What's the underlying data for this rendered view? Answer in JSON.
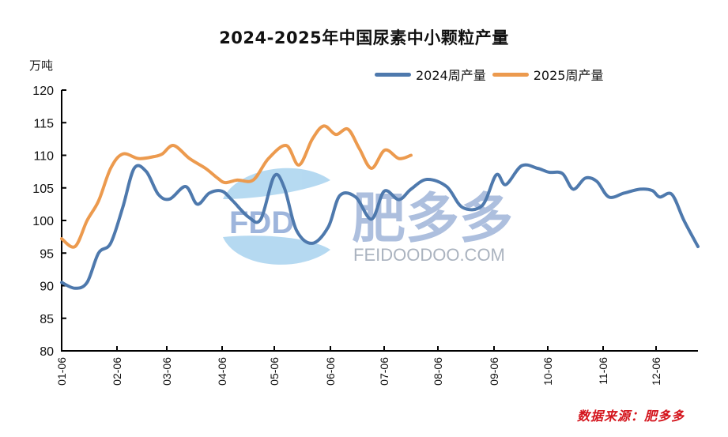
{
  "header": {
    "title": "2024-2025年中国尿素中小颗粒产量",
    "unit": "万吨"
  },
  "legend": {
    "items": [
      {
        "label": "2024周产量",
        "color": "#4e79ad"
      },
      {
        "label": "2025周产量",
        "color": "#ec9a4e"
      }
    ]
  },
  "watermark": {
    "logo": "FDD",
    "brand_cn": "肥多多",
    "brand_en": "FEIDOODOO.COM"
  },
  "footer": {
    "source": "数据来源：肥多多"
  },
  "chart_data": {
    "type": "line",
    "title": "2024-2025年中国尿素中小颗粒产量",
    "xlabel": "",
    "ylabel": "万吨",
    "ylim": [
      80,
      120
    ],
    "yticks": [
      80,
      85,
      90,
      95,
      100,
      105,
      110,
      115,
      120
    ],
    "xticks": [
      "01-06",
      "02-06",
      "03-06",
      "04-06",
      "05-06",
      "06-06",
      "07-06",
      "08-06",
      "09-06",
      "10-06",
      "11-06",
      "12-06"
    ],
    "grid": false,
    "legend_position": "top-right",
    "series": [
      {
        "name": "2024周产量",
        "color": "#4e79ad",
        "x_frac": [
          0.0,
          0.021,
          0.04,
          0.058,
          0.077,
          0.096,
          0.114,
          0.133,
          0.152,
          0.17,
          0.195,
          0.213,
          0.232,
          0.252,
          0.269,
          0.294,
          0.313,
          0.334,
          0.35,
          0.369,
          0.394,
          0.419,
          0.437,
          0.462,
          0.487,
          0.507,
          0.53,
          0.549,
          0.574,
          0.605,
          0.63,
          0.661,
          0.683,
          0.698,
          0.723,
          0.748,
          0.766,
          0.787,
          0.804,
          0.823,
          0.841,
          0.86,
          0.884,
          0.909,
          0.928,
          0.94,
          0.959,
          0.978,
          1.0
        ],
        "values": [
          90.5,
          89.6,
          90.5,
          95.0,
          96.5,
          102.0,
          108.0,
          107.5,
          104.0,
          103.3,
          105.2,
          102.5,
          104.2,
          104.5,
          103.0,
          100.5,
          100.2,
          106.8,
          105.0,
          98.5,
          96.5,
          99.0,
          103.8,
          103.6,
          100.2,
          104.5,
          103.2,
          104.8,
          106.3,
          105.2,
          102.0,
          102.3,
          107.0,
          105.5,
          108.4,
          108.0,
          107.4,
          107.2,
          104.8,
          106.5,
          106.0,
          103.6,
          104.2,
          104.8,
          104.6,
          103.6,
          104.0,
          100.0,
          96.0
        ]
      },
      {
        "name": "2025周产量",
        "color": "#ec9a4e",
        "x_frac": [
          0.0,
          0.021,
          0.04,
          0.058,
          0.077,
          0.096,
          0.121,
          0.145,
          0.158,
          0.176,
          0.201,
          0.226,
          0.245,
          0.257,
          0.276,
          0.301,
          0.325,
          0.353,
          0.373,
          0.394,
          0.412,
          0.431,
          0.45,
          0.468,
          0.487,
          0.508,
          0.53,
          0.549
        ],
        "values": [
          97.2,
          96.0,
          100.0,
          103.0,
          108.0,
          110.2,
          109.5,
          109.8,
          110.2,
          111.5,
          109.5,
          108.0,
          106.5,
          105.8,
          106.2,
          106.2,
          109.5,
          111.5,
          108.5,
          112.5,
          114.5,
          113.2,
          114.0,
          111.0,
          108.0,
          110.8,
          109.5,
          110.0
        ]
      }
    ]
  }
}
